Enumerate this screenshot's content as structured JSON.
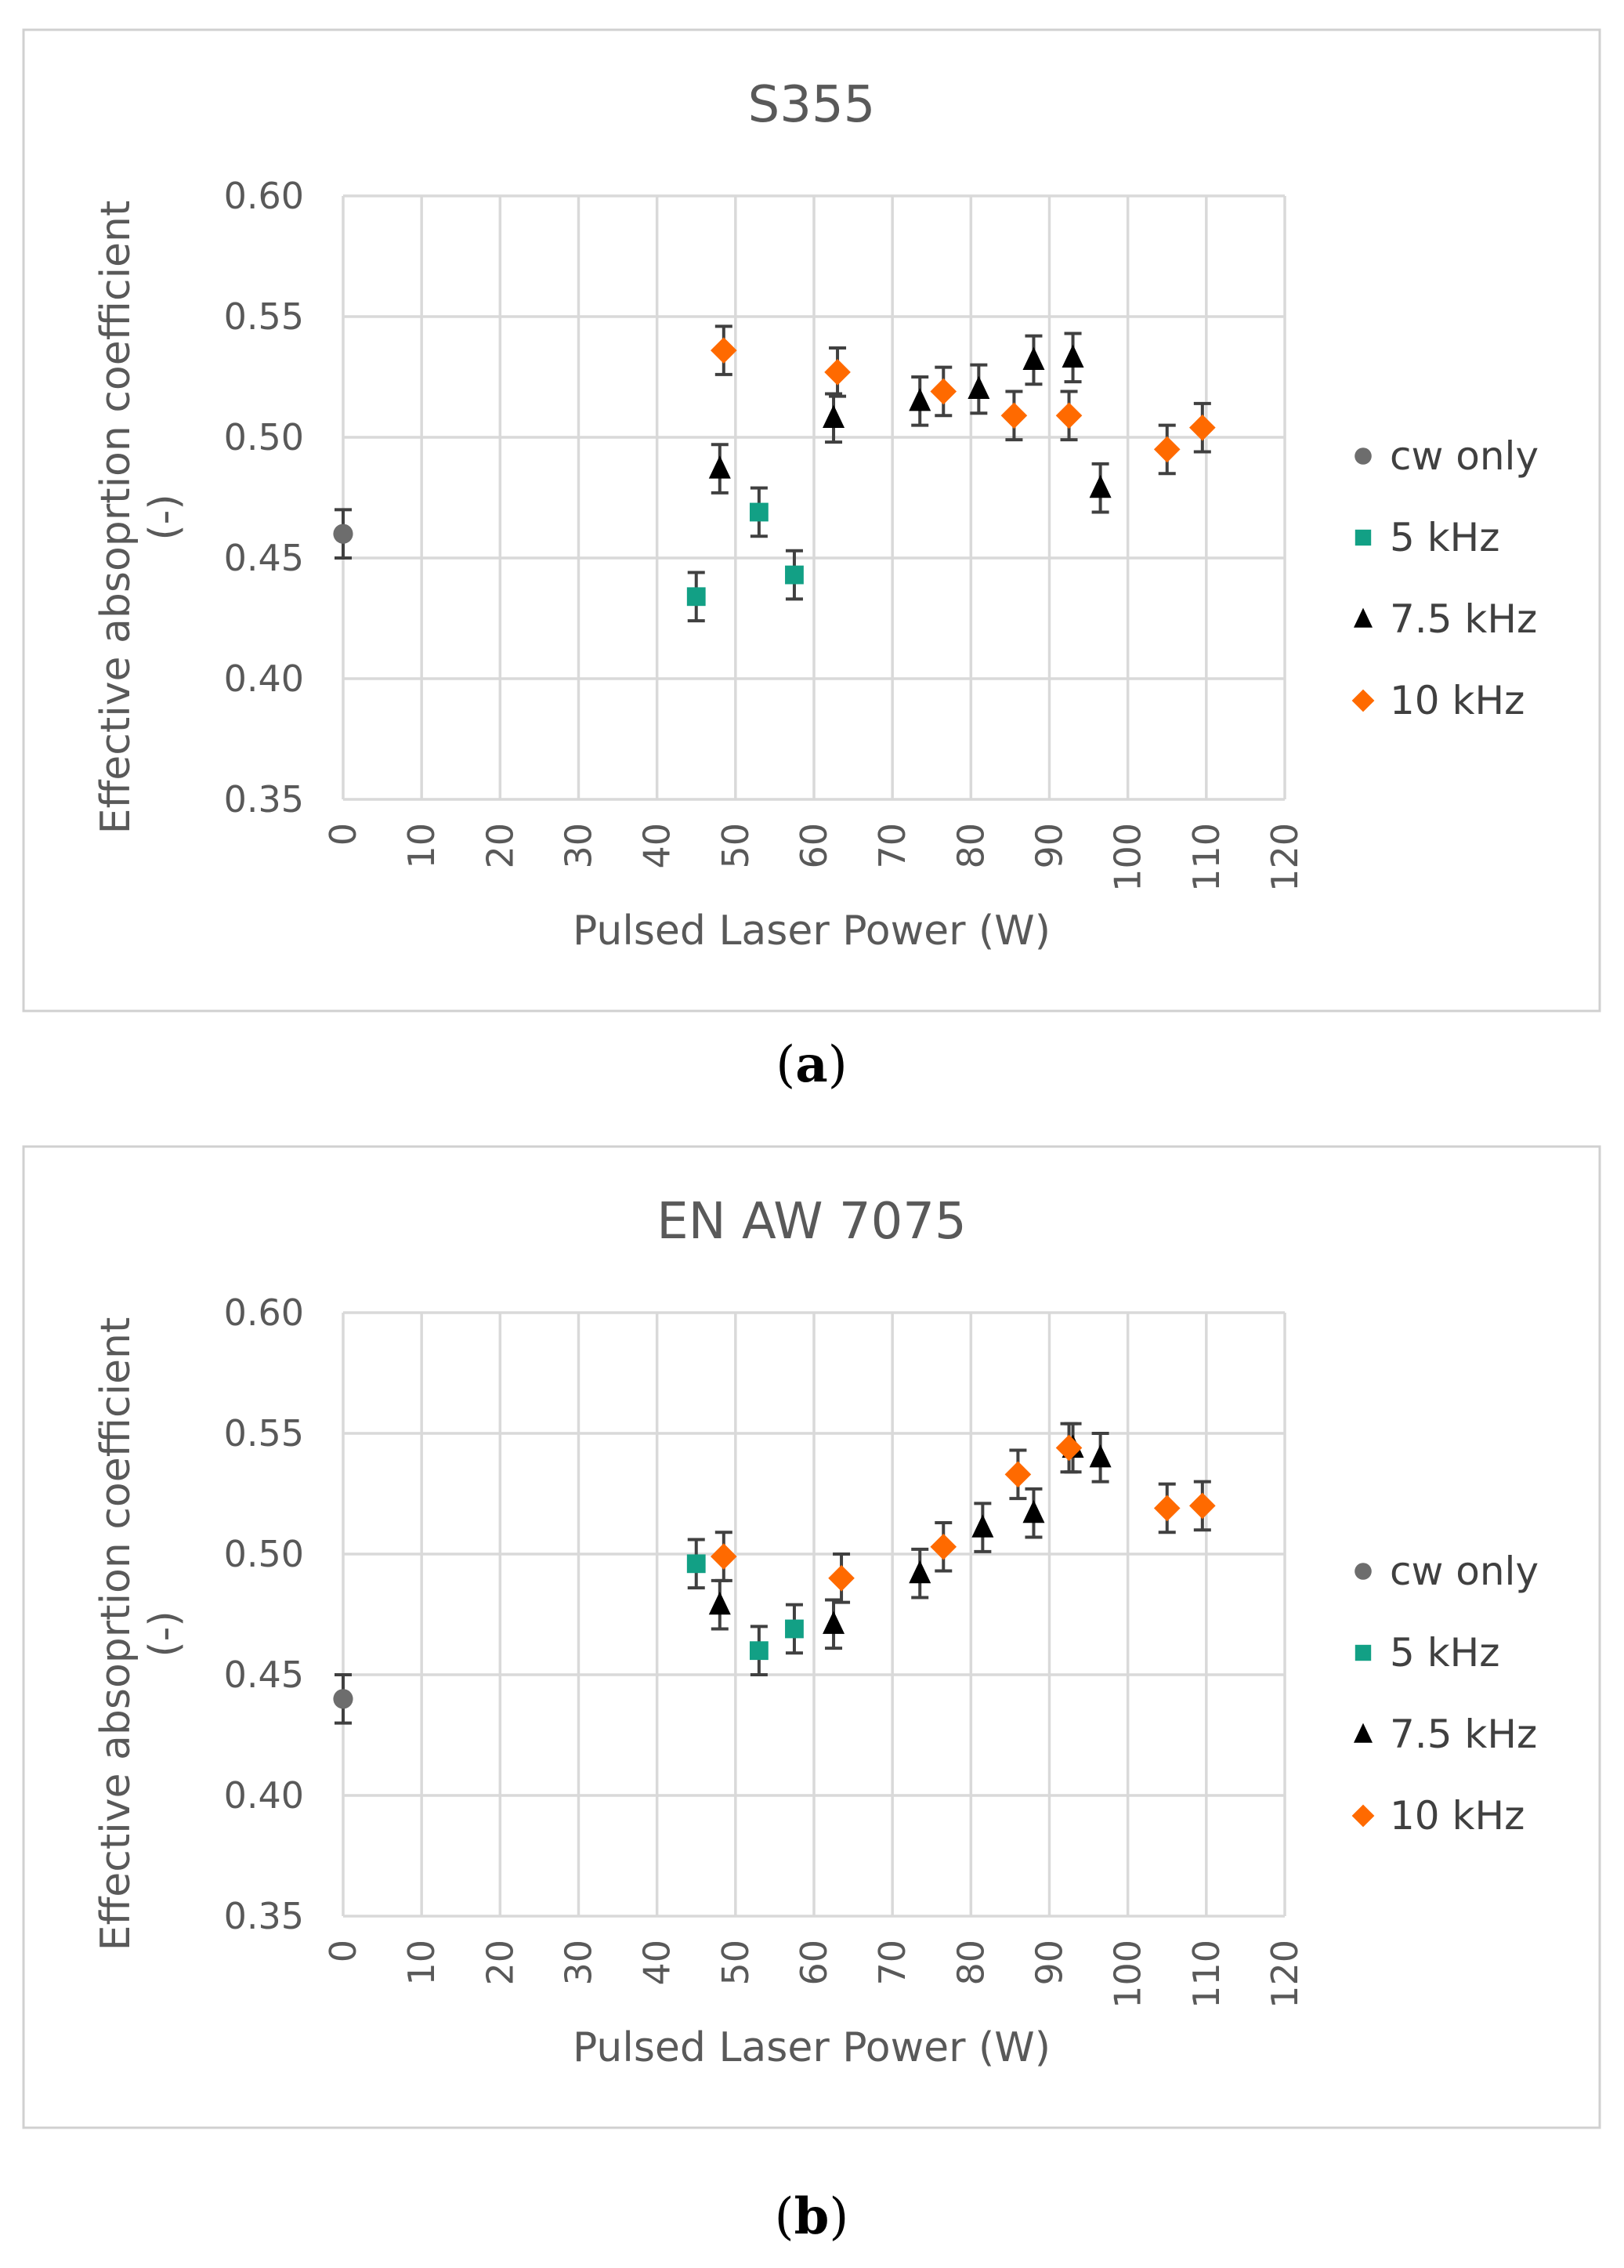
{
  "figure": {
    "captions": [
      "(a)",
      "(b)"
    ]
  },
  "legend_order": [
    "cw only",
    "5 kHz",
    "7.5 kHz",
    "10 kHz"
  ],
  "series_style": {
    "cw only": {
      "color": "#6d6d6d",
      "marker": "circle"
    },
    "5 kHz": {
      "color": "#12a085",
      "marker": "square"
    },
    "7.5 kHz": {
      "color": "#000000",
      "marker": "triangle"
    },
    "10 kHz": {
      "color": "#ff6a00",
      "marker": "diamond"
    }
  },
  "chart_data": [
    {
      "type": "scatter",
      "title": "S355",
      "xlabel": "Pulsed Laser Power (W)",
      "ylabel_line1": "Effective absoprtion coefficient",
      "ylabel_line2": "(-)",
      "xlim": [
        0,
        120
      ],
      "ylim": [
        0.35,
        0.6
      ],
      "xticks": [
        0,
        10,
        20,
        30,
        40,
        50,
        60,
        70,
        80,
        90,
        100,
        110,
        120
      ],
      "yticks": [
        0.35,
        0.4,
        0.45,
        0.5,
        0.55,
        0.6
      ],
      "ytick_labels": [
        "0.35",
        "0.40",
        "0.45",
        "0.50",
        "0.55",
        "0.60"
      ],
      "grid": true,
      "legend_position": "right",
      "series": [
        {
          "name": "cw only",
          "x": [
            0
          ],
          "y": [
            0.46
          ],
          "err": [
            0.01
          ]
        },
        {
          "name": "5 kHz",
          "x": [
            45,
            53,
            57.5
          ],
          "y": [
            0.434,
            0.469,
            0.443
          ],
          "err": [
            0.01,
            0.01,
            0.01
          ]
        },
        {
          "name": "7.5 kHz",
          "x": [
            48,
            62.5,
            73.5,
            81,
            88,
            93,
            96.5
          ],
          "y": [
            0.487,
            0.508,
            0.515,
            0.52,
            0.532,
            0.533,
            0.479
          ],
          "err": [
            0.01,
            0.01,
            0.01,
            0.01,
            0.01,
            0.01,
            0.01
          ]
        },
        {
          "name": "10 kHz",
          "x": [
            48.5,
            63,
            76.5,
            85.5,
            92.5,
            105,
            109.5
          ],
          "y": [
            0.536,
            0.527,
            0.519,
            0.509,
            0.509,
            0.495,
            0.504
          ],
          "err": [
            0.01,
            0.01,
            0.01,
            0.01,
            0.01,
            0.01,
            0.01
          ]
        }
      ]
    },
    {
      "type": "scatter",
      "title": "EN AW 7075",
      "xlabel": "Pulsed Laser Power (W)",
      "ylabel_line1": "Effective absoprtion coefficient",
      "ylabel_line2": "(-)",
      "xlim": [
        0,
        120
      ],
      "ylim": [
        0.35,
        0.6
      ],
      "xticks": [
        0,
        10,
        20,
        30,
        40,
        50,
        60,
        70,
        80,
        90,
        100,
        110,
        120
      ],
      "yticks": [
        0.35,
        0.4,
        0.45,
        0.5,
        0.55,
        0.6
      ],
      "ytick_labels": [
        "0.35",
        "0.40",
        "0.45",
        "0.50",
        "0.55",
        "0.60"
      ],
      "grid": true,
      "legend_position": "right",
      "series": [
        {
          "name": "cw only",
          "x": [
            0
          ],
          "y": [
            0.44
          ],
          "err": [
            0.01
          ]
        },
        {
          "name": "5 kHz",
          "x": [
            45,
            53,
            57.5
          ],
          "y": [
            0.496,
            0.46,
            0.469
          ],
          "err": [
            0.01,
            0.01,
            0.01
          ]
        },
        {
          "name": "7.5 kHz",
          "x": [
            48,
            62.5,
            73.5,
            81.5,
            88,
            93,
            96.5
          ],
          "y": [
            0.479,
            0.471,
            0.492,
            0.511,
            0.517,
            0.544,
            0.54
          ],
          "err": [
            0.01,
            0.01,
            0.01,
            0.01,
            0.01,
            0.01,
            0.01
          ]
        },
        {
          "name": "10 kHz",
          "x": [
            48.5,
            63.5,
            76.5,
            86,
            92.5,
            105,
            109.5
          ],
          "y": [
            0.499,
            0.49,
            0.503,
            0.533,
            0.544,
            0.519,
            0.52
          ],
          "err": [
            0.01,
            0.01,
            0.01,
            0.01,
            0.01,
            0.01,
            0.01
          ]
        }
      ]
    }
  ]
}
